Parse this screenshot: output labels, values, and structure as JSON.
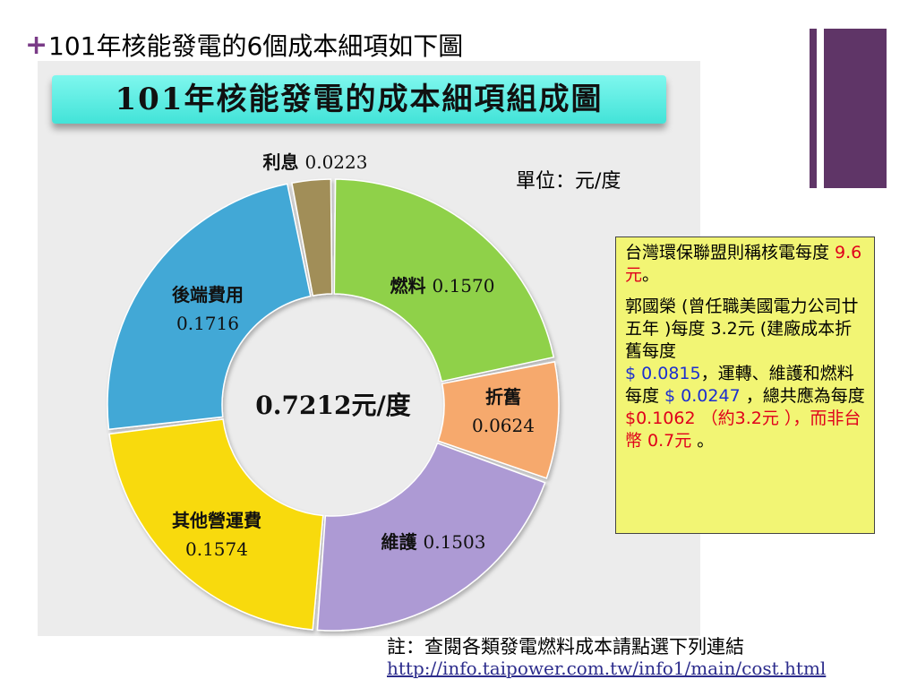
{
  "slide": {
    "title": "101年核能發電的6個成本細項如下圖",
    "plus_glyph": "+"
  },
  "chart_data": {
    "type": "pie",
    "title": "101年核能發電的成本細項組成圖",
    "center_label": "0.7212元/度",
    "unit_label": "單位：元/度",
    "total": 0.7212,
    "slices": [
      {
        "name": "燃料",
        "value": 0.157,
        "value_text": "0.1570",
        "color": "#8fd149"
      },
      {
        "name": "折舊",
        "value": 0.0624,
        "value_text": "0.0624",
        "color": "#f6a96d"
      },
      {
        "name": "維護",
        "value": 0.1503,
        "value_text": "0.1503",
        "color": "#ad9ad4"
      },
      {
        "name": "其他營運費",
        "value": 0.1574,
        "value_text": "0.1574",
        "color": "#f8da10"
      },
      {
        "name": "後端費用",
        "value": 0.1716,
        "value_text": "0.1716",
        "color": "#42a8d6"
      },
      {
        "name": "利息",
        "value": 0.0223,
        "value_text": "0.0223",
        "color": "#a18e58"
      }
    ]
  },
  "note": {
    "line1_a": "台灣環保聯盟則稱核電每度 ",
    "line1_b": "9.6元",
    "line1_c": "。",
    "line2_a": "郭國榮 (曾任職美國電力公司廿五年 )每度 3.2元 (建廠成本折舊每度",
    "line2_b": "$ 0.0815",
    "line2_c": "，運轉、維護和燃料每度 ",
    "line2_d": "$ 0.0247",
    "line2_e": " ，總共應為每度 ",
    "line2_f": "$0.1062 （約3.2元 ），而非台幣 0.7元",
    "line2_g": " 。"
  },
  "footer": {
    "note": "註：查閱各類發電燃料成本請點選下列連結",
    "link": "http://info.taipower.com.tw/info1/main/cost.html"
  }
}
